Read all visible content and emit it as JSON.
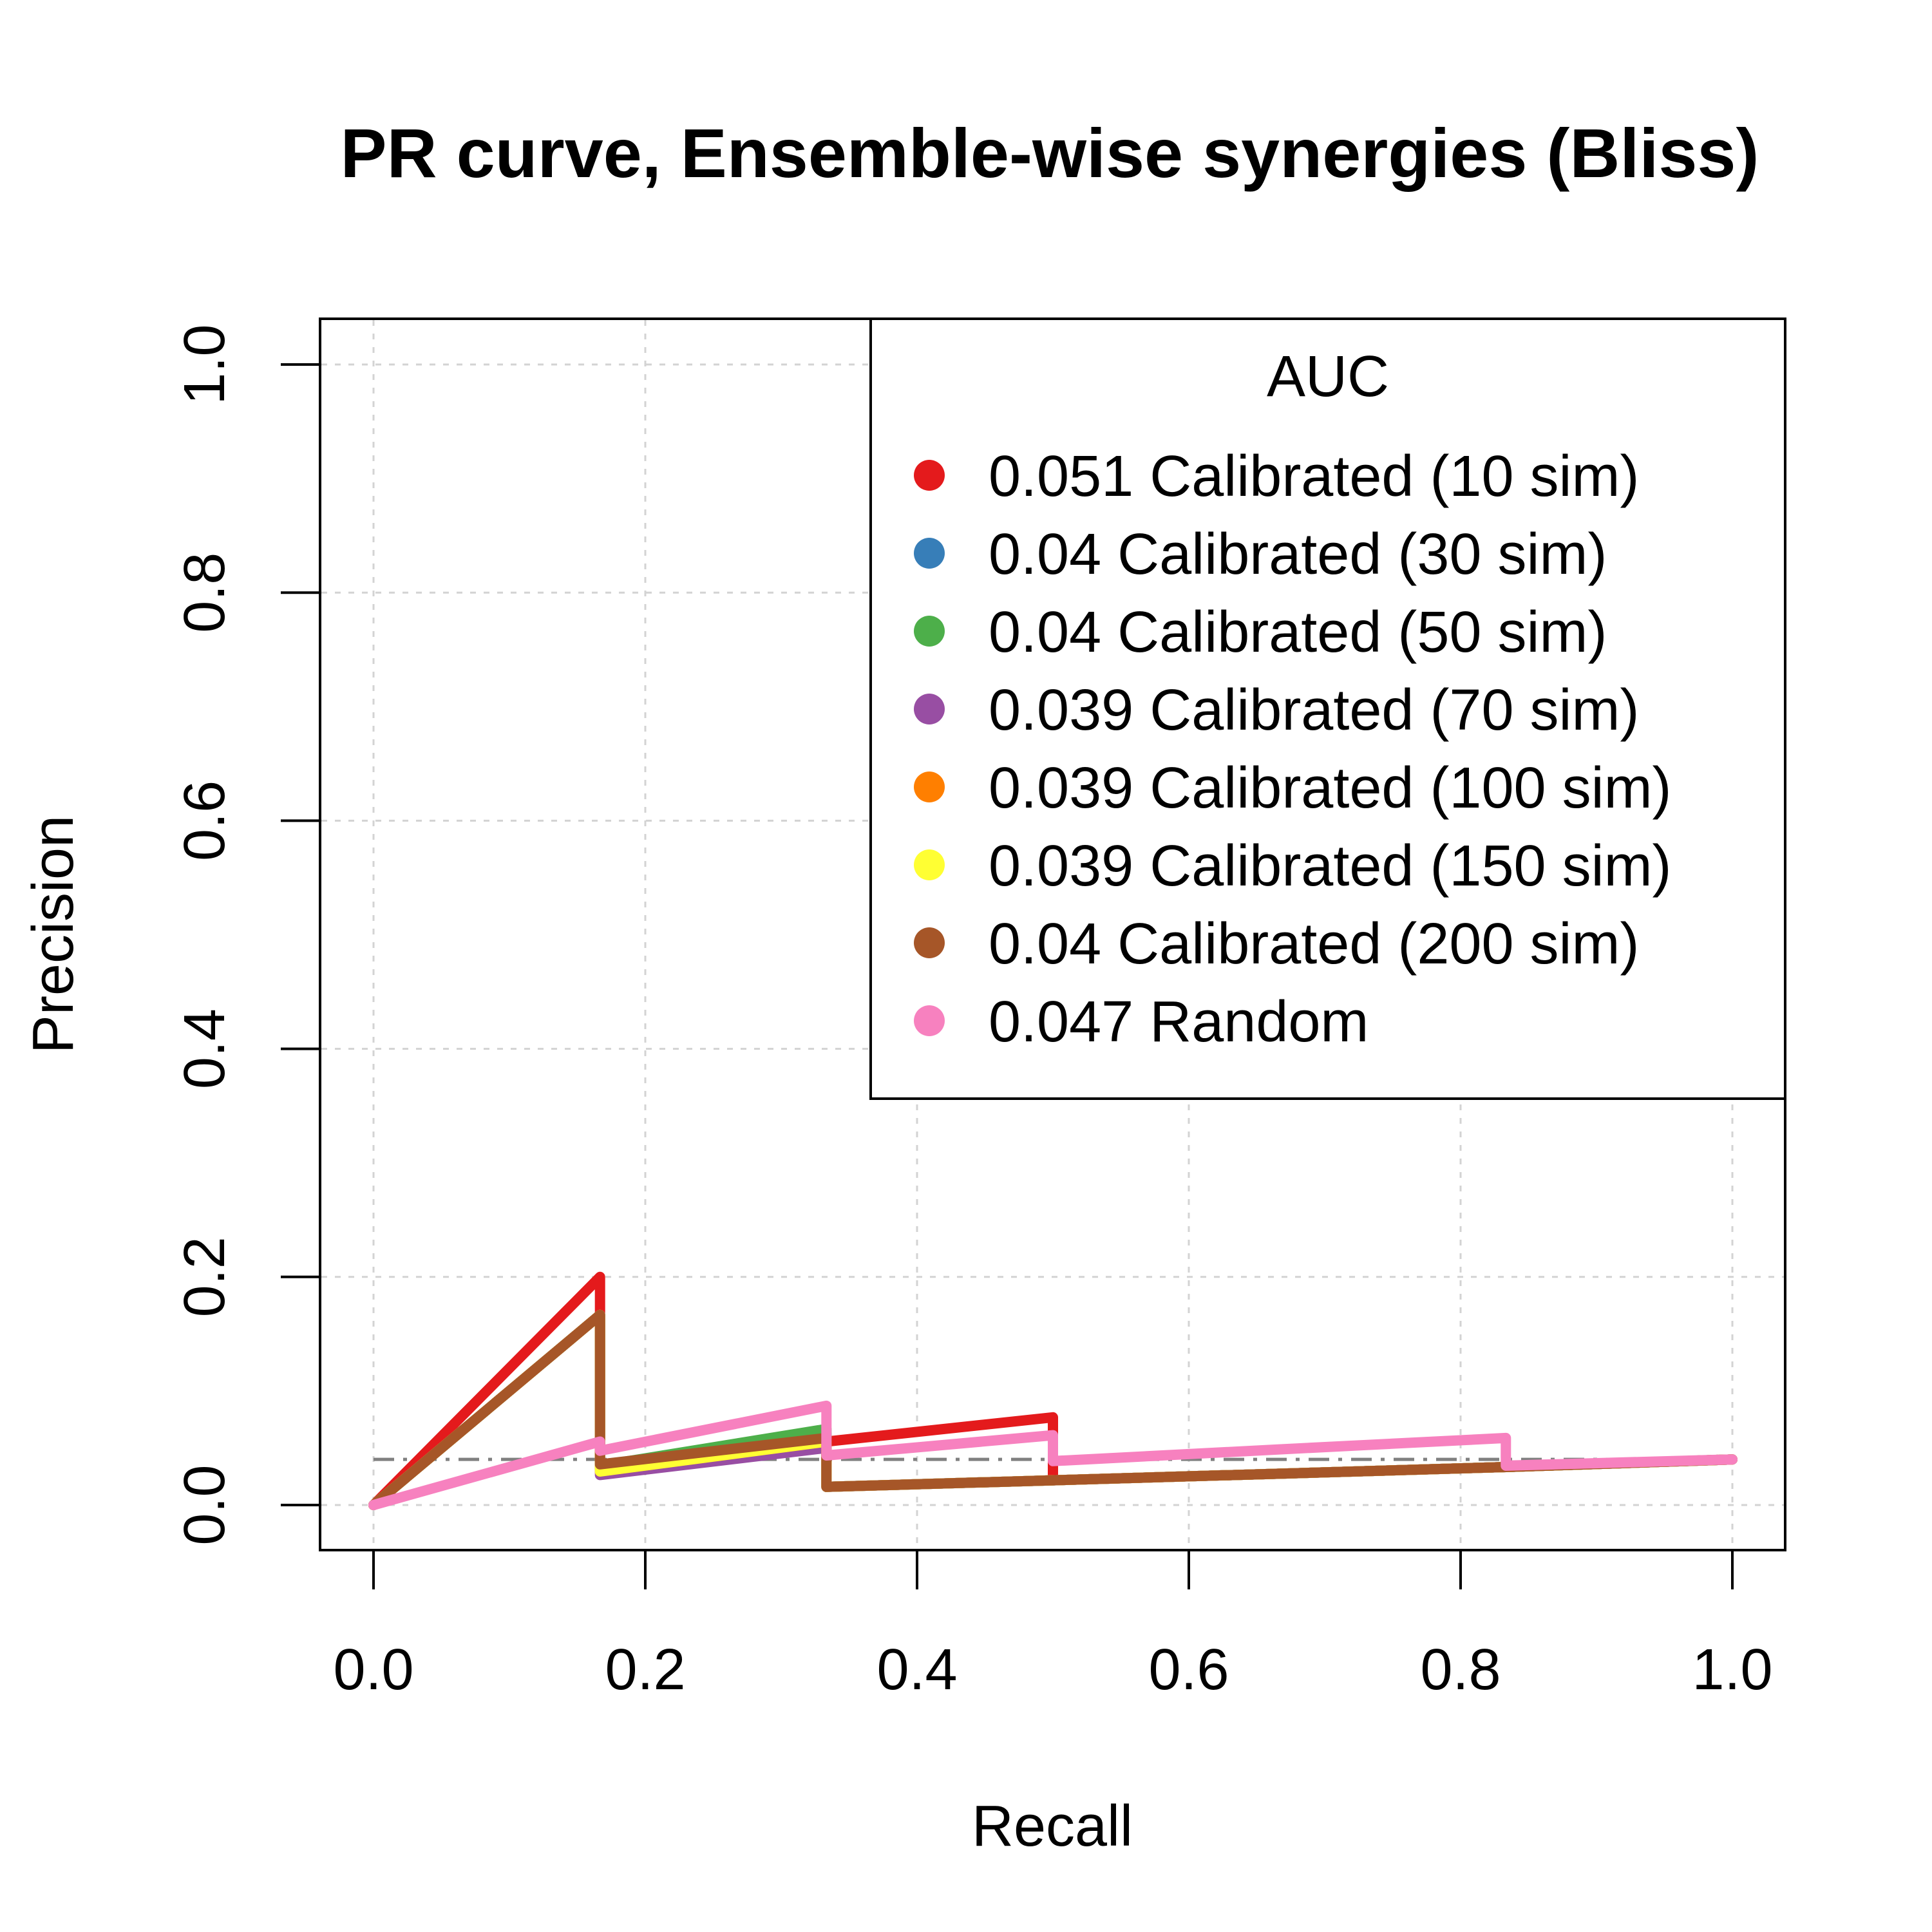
{
  "chart_data": {
    "type": "line",
    "title": "PR curve, Ensemble-wise synergies (Bliss)",
    "xlabel": "Recall",
    "ylabel": "Precision",
    "xlim": [
      0,
      1
    ],
    "ylim": [
      0,
      1
    ],
    "x_ticks": [
      "0.0",
      "0.2",
      "0.4",
      "0.6",
      "0.8",
      "1.0"
    ],
    "y_ticks": [
      "0.0",
      "0.2",
      "0.4",
      "0.6",
      "0.8",
      "1.0"
    ],
    "grid": true,
    "baseline": {
      "value": 0.04,
      "style": "dash-dot",
      "color": "#808080"
    },
    "legend": {
      "title": "AUC",
      "position": "top-right",
      "entries": [
        {
          "label": "0.051 Calibrated (10 sim)",
          "color": "#E41A1C"
        },
        {
          "label": "0.04 Calibrated (30 sim)",
          "color": "#377EB8"
        },
        {
          "label": "0.04 Calibrated (50 sim)",
          "color": "#4DAF4A"
        },
        {
          "label": "0.039 Calibrated (70 sim)",
          "color": "#984EA3"
        },
        {
          "label": "0.039 Calibrated (100 sim)",
          "color": "#FF7F00"
        },
        {
          "label": "0.039 Calibrated (150 sim)",
          "color": "#FFFF33"
        },
        {
          "label": "0.04 Calibrated (200 sim)",
          "color": "#A65628"
        },
        {
          "label": "0.047 Random",
          "color": "#F781BF"
        }
      ]
    },
    "series": [
      {
        "color": "#E41A1C",
        "points": [
          [
            0,
            0
          ],
          [
            0.1667,
            0.2
          ],
          [
            0.1667,
            0.0357
          ],
          [
            0.3333,
            0.0556
          ],
          [
            0.5,
            0.0769
          ],
          [
            0.5,
            0.0217
          ],
          [
            0.8333,
            0.0333
          ],
          [
            1,
            0.04
          ]
        ]
      },
      {
        "color": "#377EB8",
        "points": [
          [
            0,
            0
          ],
          [
            0.1667,
            0.1667
          ],
          [
            0.1667,
            0.0323
          ],
          [
            0.3333,
            0.0625
          ],
          [
            0.3333,
            0.0159
          ],
          [
            0.5,
            0.0217
          ],
          [
            0.8333,
            0.0333
          ],
          [
            1,
            0.04
          ]
        ]
      },
      {
        "color": "#4DAF4A",
        "points": [
          [
            0,
            0
          ],
          [
            0.1667,
            0.1667
          ],
          [
            0.1667,
            0.0345
          ],
          [
            0.3333,
            0.0667
          ],
          [
            0.3333,
            0.0159
          ],
          [
            0.5,
            0.0217
          ],
          [
            0.8333,
            0.0333
          ],
          [
            1,
            0.04
          ]
        ]
      },
      {
        "color": "#984EA3",
        "points": [
          [
            0,
            0
          ],
          [
            0.1667,
            0.1667
          ],
          [
            0.1667,
            0.0263
          ],
          [
            0.3333,
            0.05
          ],
          [
            0.3333,
            0.0159
          ],
          [
            0.5,
            0.0217
          ],
          [
            0.8333,
            0.0333
          ],
          [
            1,
            0.04
          ]
        ]
      },
      {
        "color": "#FF7F00",
        "points": [
          [
            0,
            0
          ],
          [
            0.1667,
            0.1667
          ],
          [
            0.1667,
            0.0294
          ],
          [
            0.3333,
            0.0556
          ],
          [
            0.3333,
            0.0159
          ],
          [
            0.5,
            0.0217
          ],
          [
            0.8333,
            0.0333
          ],
          [
            1,
            0.04
          ]
        ]
      },
      {
        "color": "#FFFF33",
        "points": [
          [
            0,
            0
          ],
          [
            0.1667,
            0.1667
          ],
          [
            0.1667,
            0.0294
          ],
          [
            0.3333,
            0.0556
          ],
          [
            0.3333,
            0.0159
          ],
          [
            0.5,
            0.0217
          ],
          [
            0.8333,
            0.0333
          ],
          [
            1,
            0.04
          ]
        ]
      },
      {
        "color": "#A65628",
        "points": [
          [
            0,
            0
          ],
          [
            0.1667,
            0.1667
          ],
          [
            0.1667,
            0.0357
          ],
          [
            0.3333,
            0.0588
          ],
          [
            0.3333,
            0.0159
          ],
          [
            0.5,
            0.0217
          ],
          [
            0.8333,
            0.0333
          ],
          [
            1,
            0.04
          ]
        ]
      },
      {
        "color": "#F781BF",
        "points": [
          [
            0,
            0
          ],
          [
            0.1667,
            0.0556
          ],
          [
            0.1667,
            0.0476
          ],
          [
            0.3333,
            0.087
          ],
          [
            0.3333,
            0.0435
          ],
          [
            0.5,
            0.0612
          ],
          [
            0.5,
            0.0385
          ],
          [
            0.6667,
            0.0488
          ],
          [
            0.8333,
            0.0588
          ],
          [
            0.8333,
            0.0345
          ],
          [
            1,
            0.04
          ]
        ]
      }
    ]
  }
}
